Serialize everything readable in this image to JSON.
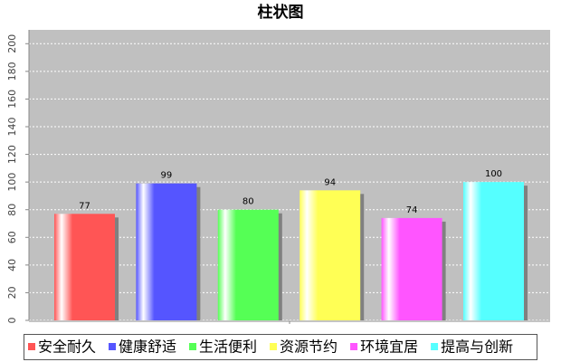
{
  "chart_data": {
    "type": "bar",
    "title": "柱状图",
    "categories": [
      null
    ],
    "series": [
      {
        "name": "安全耐久",
        "color": "#ff5555",
        "values": [
          77
        ]
      },
      {
        "name": "健康舒适",
        "color": "#5555ff",
        "values": [
          99
        ]
      },
      {
        "name": "生活便利",
        "color": "#55ff55",
        "values": [
          80
        ]
      },
      {
        "name": "资源节约",
        "color": "#ffff55",
        "values": [
          94
        ]
      },
      {
        "name": "环境宜居",
        "color": "#ff55ff",
        "values": [
          74
        ]
      },
      {
        "name": "提高与创新",
        "color": "#55ffff",
        "values": [
          100
        ]
      }
    ],
    "ylim": [
      0,
      210
    ],
    "yticks": [
      0,
      20,
      40,
      60,
      80,
      100,
      120,
      140,
      160,
      180,
      200
    ],
    "grid": true
  }
}
